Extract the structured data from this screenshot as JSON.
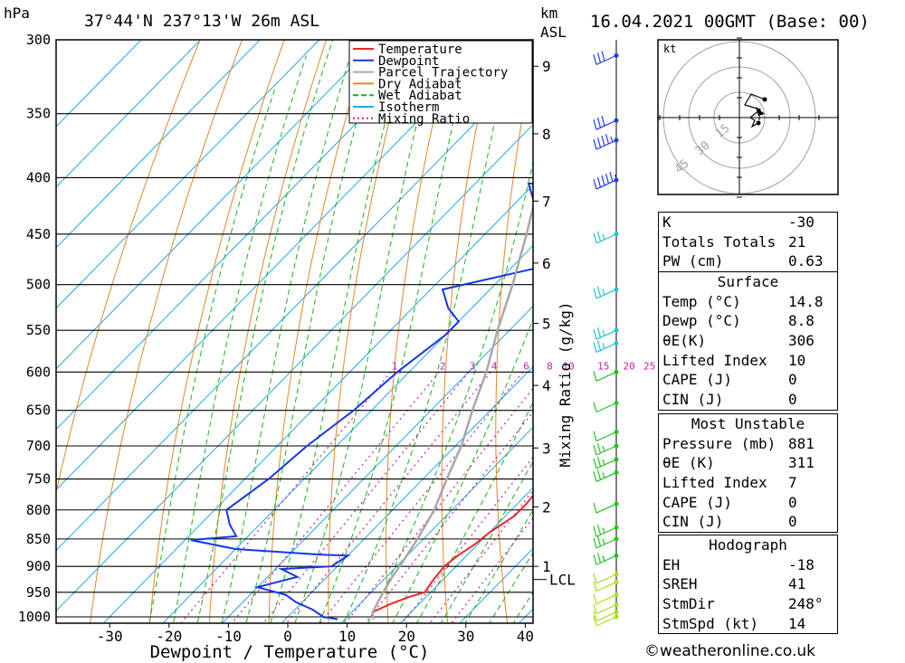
{
  "header": {
    "hpa_label": "hPa",
    "location": "37°44'N  237°13'W  26m  ASL",
    "km_label": "km",
    "asl_label": "ASL",
    "datetime": "16.04.2021  00GMT  (Base: 00)"
  },
  "chart_data": {
    "type": "line",
    "title": "",
    "xlabel": "Dewpoint / Temperature (°C)",
    "ylabel": "hPa",
    "secondary_ylabel": "Mixing Ratio (g/kg)",
    "x_ticks": [
      -30,
      -20,
      -10,
      0,
      10,
      20,
      30,
      40
    ],
    "pressure_levels": [
      300,
      350,
      400,
      450,
      500,
      550,
      600,
      650,
      700,
      750,
      800,
      850,
      900,
      950,
      1000
    ],
    "km_ticks": [
      {
        "label": "9",
        "p": 317
      },
      {
        "label": "8",
        "p": 365
      },
      {
        "label": "7",
        "p": 420
      },
      {
        "label": "6",
        "p": 478
      },
      {
        "label": "5",
        "p": 542
      },
      {
        "label": "4",
        "p": 617
      },
      {
        "label": "3",
        "p": 703
      },
      {
        "label": "2",
        "p": 795
      },
      {
        "label": "1",
        "p": 900
      }
    ],
    "lcl": {
      "label": "LCL",
      "p": 925
    },
    "mixing_ratio_labels": [
      "1",
      "2",
      "3",
      "4",
      "6",
      "8",
      "10",
      "15",
      "20",
      "25"
    ],
    "legend": [
      "Temperature",
      "Dewpoint",
      "Parcel Trajectory",
      "Dry Adiabat",
      "Wet Adiabat",
      "Isotherm",
      "Mixing Ratio"
    ],
    "legend_position": "top-right",
    "colors": {
      "temperature": "#e8292a",
      "dewpoint": "#1437e8",
      "parcel": "#a8a8a8",
      "dry_adiabat": "#e0862a",
      "wet_adiabat": "#16b416",
      "isotherm": "#20a8e8",
      "mixing_ratio": "#c81ea0"
    },
    "series": [
      {
        "name": "Temperature",
        "points": [
          [
            -7.5,
            300
          ],
          [
            -6.5,
            320
          ],
          [
            -5,
            340
          ],
          [
            -3,
            360
          ],
          [
            -1.5,
            380
          ],
          [
            0,
            395
          ],
          [
            1,
            410
          ],
          [
            3,
            440
          ],
          [
            5,
            470
          ],
          [
            7,
            500
          ],
          [
            9,
            530
          ],
          [
            11,
            560
          ],
          [
            13,
            590
          ],
          [
            15,
            620
          ],
          [
            16.5,
            650
          ],
          [
            17,
            670
          ],
          [
            18,
            700
          ],
          [
            20,
            730
          ],
          [
            21,
            760
          ],
          [
            21.5,
            790
          ],
          [
            21.5,
            810
          ],
          [
            20,
            840
          ],
          [
            19.5,
            860
          ],
          [
            18.5,
            880
          ],
          [
            18,
            900
          ],
          [
            18.5,
            930
          ],
          [
            19,
            950
          ],
          [
            17,
            960
          ],
          [
            15,
            975
          ],
          [
            13.5,
            990
          ],
          [
            14.8,
            1005
          ]
        ]
      },
      {
        "name": "Dewpoint",
        "points": [
          [
            -11,
            300
          ],
          [
            -9,
            315
          ],
          [
            -6,
            320
          ],
          [
            -7,
            330
          ],
          [
            -5,
            340
          ],
          [
            -7,
            350
          ],
          [
            -2,
            362
          ],
          [
            0,
            375
          ],
          [
            -1,
            385
          ],
          [
            1,
            398
          ],
          [
            1,
            400
          ],
          [
            -31,
            405
          ],
          [
            -26,
            425
          ],
          [
            -17,
            460
          ],
          [
            -14,
            480
          ],
          [
            -28,
            505
          ],
          [
            -24,
            525
          ],
          [
            -20,
            540
          ],
          [
            -20,
            555
          ],
          [
            -22,
            600
          ],
          [
            -23,
            650
          ],
          [
            -25,
            700
          ],
          [
            -26,
            750
          ],
          [
            -28,
            800
          ],
          [
            -25,
            825
          ],
          [
            -22,
            845
          ],
          [
            -29,
            852
          ],
          [
            -20,
            868
          ],
          [
            -5,
            878
          ],
          [
            0,
            880
          ],
          [
            -1,
            900
          ],
          [
            -9,
            905
          ],
          [
            -5,
            920
          ],
          [
            -10,
            940
          ],
          [
            -4,
            955
          ],
          [
            -1,
            970
          ],
          [
            3,
            985
          ],
          [
            6,
            1000
          ],
          [
            8.8,
            1005
          ]
        ]
      },
      {
        "name": "Parcel Trajectory",
        "points": [
          [
            14.8,
            1005
          ],
          [
            13.5,
            990
          ],
          [
            12,
            950
          ],
          [
            11,
            920
          ],
          [
            10.5,
            900
          ],
          [
            9,
            850
          ],
          [
            7,
            800
          ],
          [
            4,
            750
          ],
          [
            1,
            700
          ],
          [
            -3,
            650
          ],
          [
            -7,
            600
          ],
          [
            -12,
            550
          ],
          [
            -17,
            500
          ],
          [
            -23,
            450
          ],
          [
            -30,
            400
          ],
          [
            -37,
            350
          ],
          [
            -45,
            300
          ]
        ]
      }
    ],
    "wind_barbs": [
      {
        "p": 310,
        "kt": 30
      },
      {
        "p": 355,
        "kt": 30
      },
      {
        "p": 370,
        "kt": 35
      },
      {
        "p": 402,
        "kt": 45
      },
      {
        "p": 450,
        "kt": 15
      },
      {
        "p": 505,
        "kt": 15
      },
      {
        "p": 550,
        "kt": 15
      },
      {
        "p": 565,
        "kt": 15
      },
      {
        "p": 600,
        "kt": 10
      },
      {
        "p": 640,
        "kt": 10
      },
      {
        "p": 680,
        "kt": 10
      },
      {
        "p": 700,
        "kt": 15
      },
      {
        "p": 720,
        "kt": 15
      },
      {
        "p": 740,
        "kt": 15
      },
      {
        "p": 790,
        "kt": 10
      },
      {
        "p": 830,
        "kt": 15
      },
      {
        "p": 850,
        "kt": 15
      },
      {
        "p": 880,
        "kt": 15
      },
      {
        "p": 915,
        "kt": 10
      },
      {
        "p": 930,
        "kt": 10
      },
      {
        "p": 955,
        "kt": 10
      },
      {
        "p": 975,
        "kt": 10
      },
      {
        "p": 990,
        "kt": 10
      },
      {
        "p": 1000,
        "kt": 10
      }
    ]
  },
  "hodograph": {
    "unit_label": "kt",
    "ring_labels": [
      "15",
      "30",
      "45"
    ]
  },
  "indices": {
    "rows": [
      {
        "label": "K",
        "value": "-30"
      },
      {
        "label": "Totals Totals",
        "value": "21"
      },
      {
        "label": "PW (cm)",
        "value": "0.63"
      }
    ]
  },
  "surface": {
    "title": "Surface",
    "rows": [
      {
        "label": "Temp (°C)",
        "value": "14.8"
      },
      {
        "label": "Dewp (°C)",
        "value": "8.8"
      },
      {
        "label": "θE(K)",
        "value": "306"
      },
      {
        "label": "Lifted Index",
        "value": "10"
      },
      {
        "label": "CAPE (J)",
        "value": "0"
      },
      {
        "label": "CIN (J)",
        "value": "0"
      }
    ]
  },
  "most_unstable": {
    "title": "Most Unstable",
    "rows": [
      {
        "label": "Pressure (mb)",
        "value": "881"
      },
      {
        "label": "θE (K)",
        "value": "311"
      },
      {
        "label": "Lifted Index",
        "value": "7"
      },
      {
        "label": "CAPE (J)",
        "value": "0"
      },
      {
        "label": "CIN (J)",
        "value": "0"
      }
    ]
  },
  "hodograph_table": {
    "title": "Hodograph",
    "rows": [
      {
        "label": "EH",
        "value": "-18"
      },
      {
        "label": "SREH",
        "value": "41"
      },
      {
        "label": "StmDir",
        "value": "248°"
      },
      {
        "label": "StmSpd (kt)",
        "value": "14"
      }
    ]
  },
  "credit": "©weatheronline.co.uk"
}
